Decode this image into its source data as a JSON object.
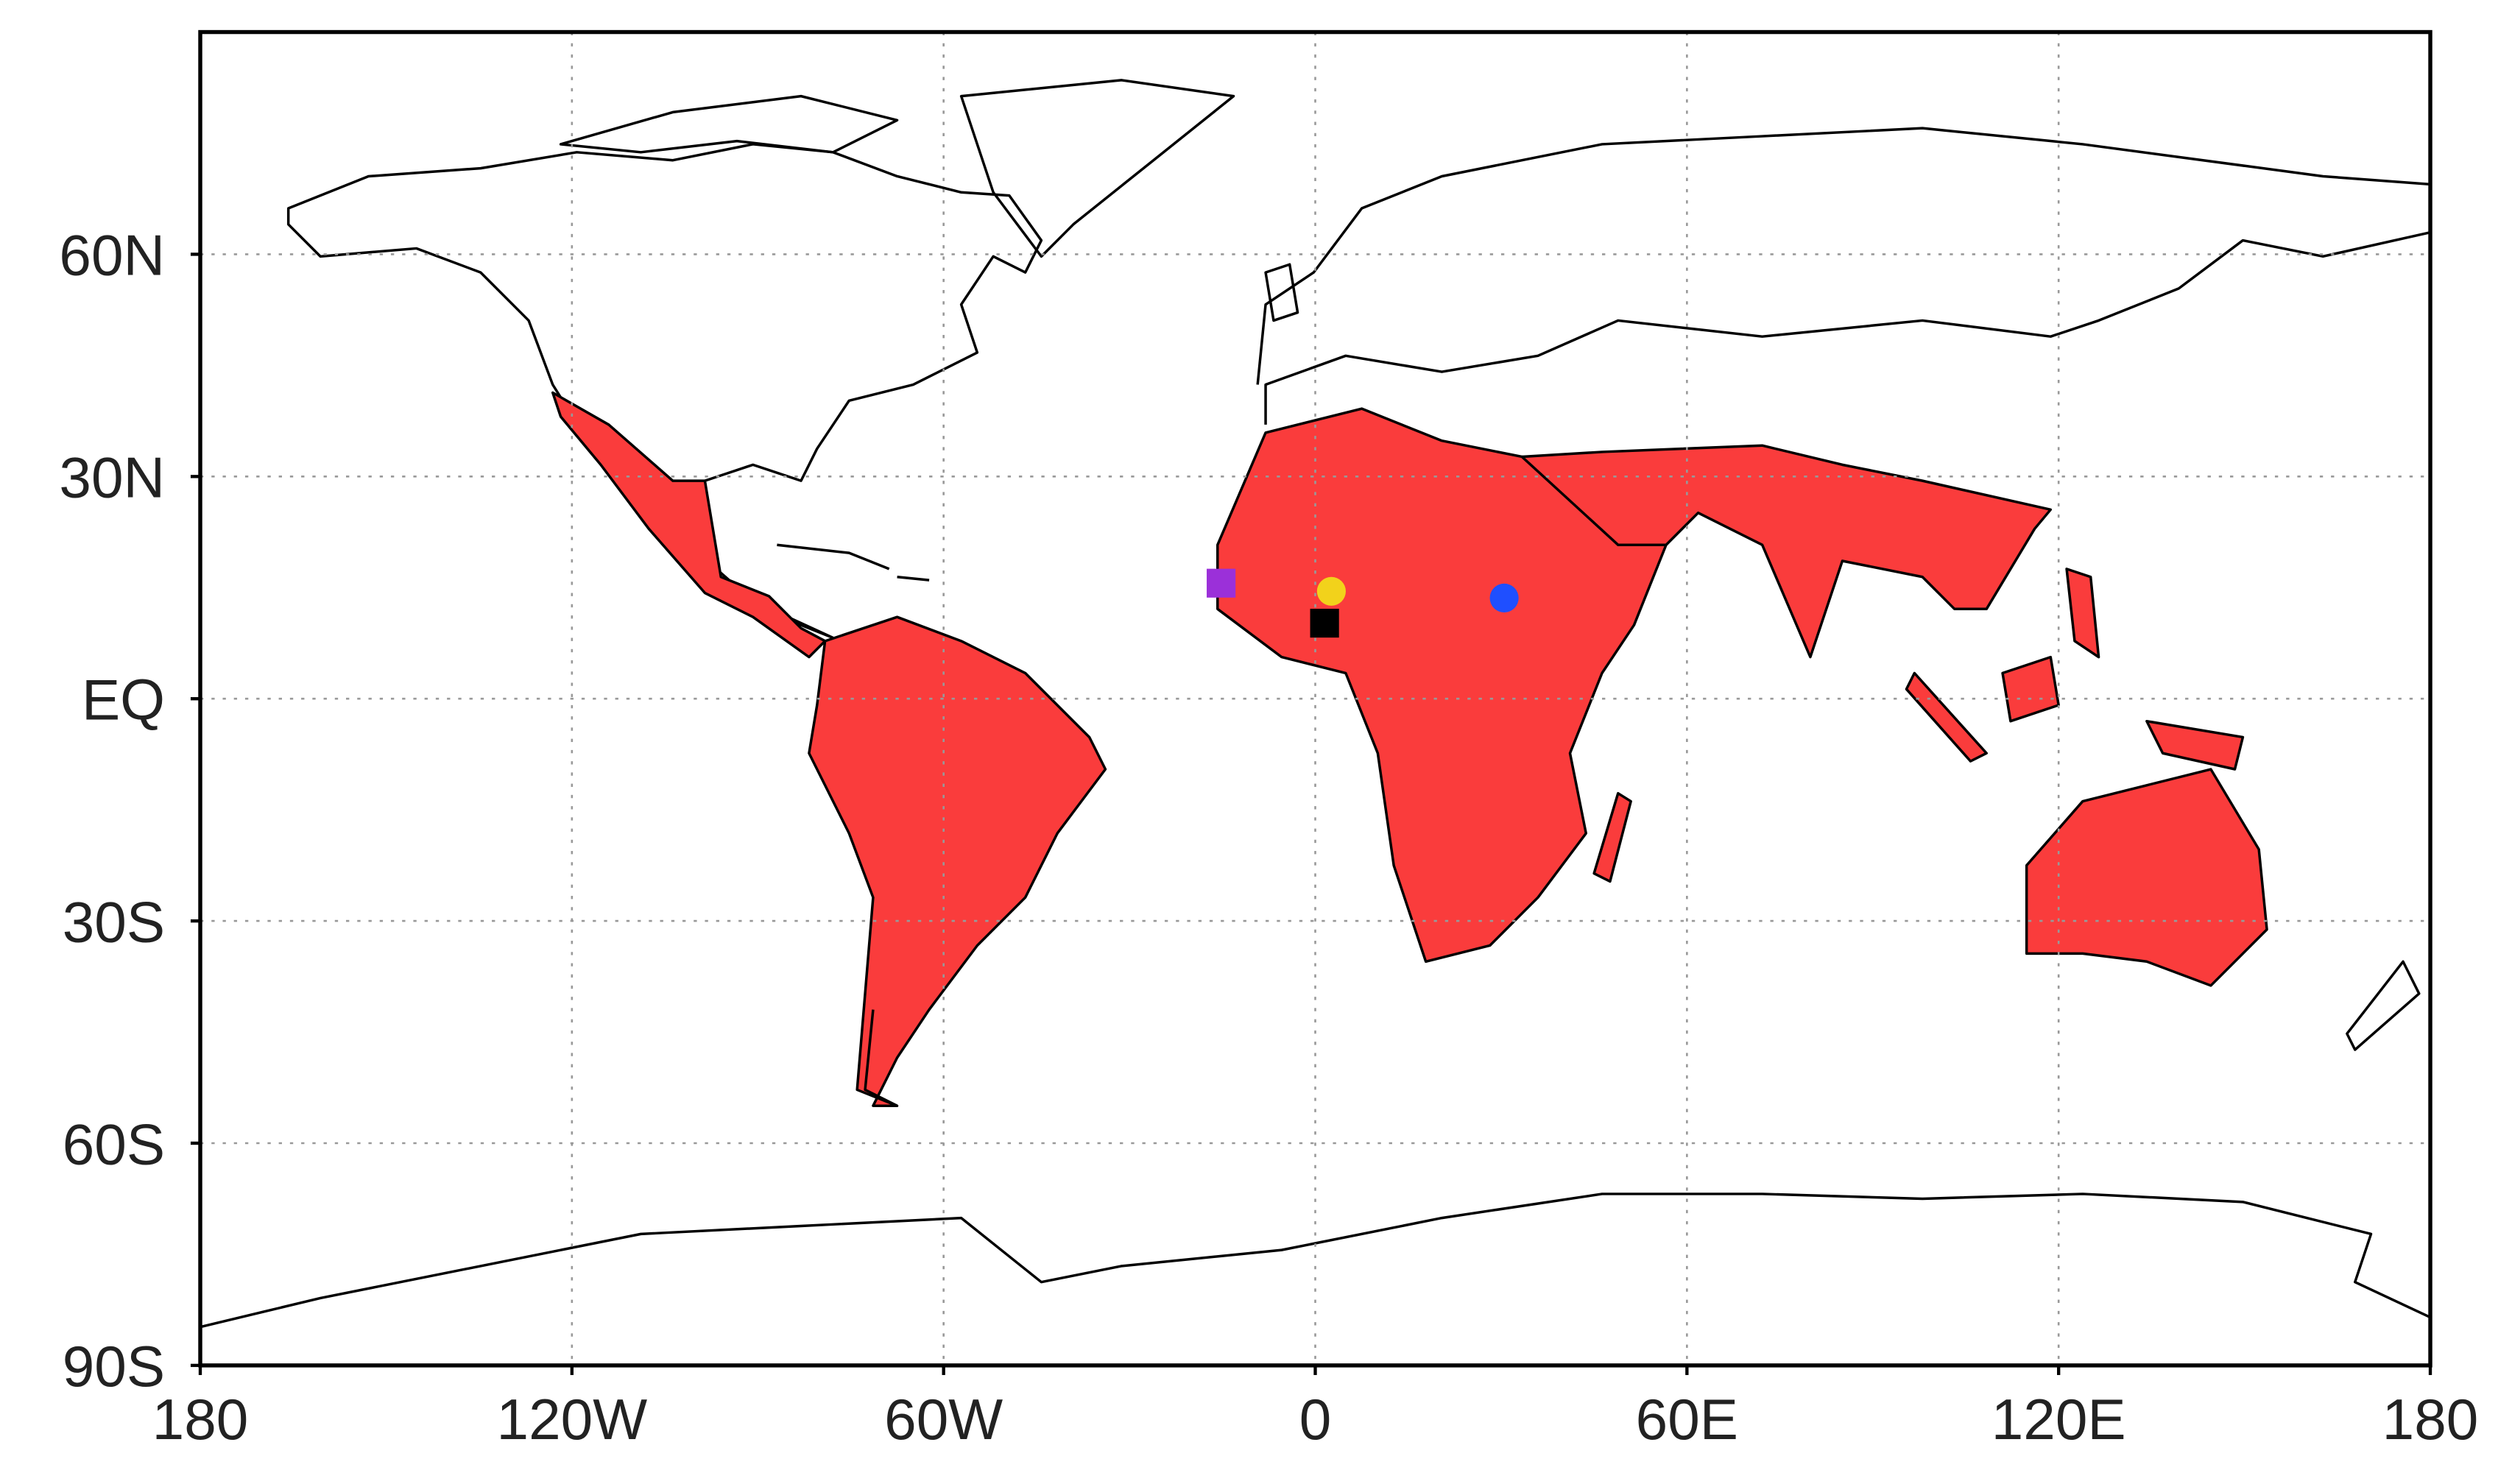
{
  "chart_data": {
    "type": "map",
    "xlim": [
      -180,
      180
    ],
    "ylim": [
      -90,
      90
    ],
    "xticks": [
      {
        "value": -180,
        "label": "180"
      },
      {
        "value": -120,
        "label": "120W"
      },
      {
        "value": -60,
        "label": "60W"
      },
      0,
      {
        "value": 60,
        "label": "60E"
      },
      {
        "value": 120,
        "label": "120E"
      },
      180
    ],
    "yticks": [
      {
        "value": -90,
        "label": "90S"
      },
      {
        "value": -60,
        "label": "60S"
      },
      {
        "value": -30,
        "label": "30S"
      },
      {
        "value": 0,
        "label": "EQ"
      },
      {
        "value": 30,
        "label": "30N"
      },
      {
        "value": 60,
        "label": "60N"
      }
    ],
    "grid": true,
    "markers": [
      {
        "lon": -15.2,
        "lat": 15.6,
        "color": "#9b30d9",
        "shape": "square"
      },
      {
        "lon": 2.6,
        "lat": 14.5,
        "color": "#f2d21b",
        "shape": "circle"
      },
      {
        "lon": 1.5,
        "lat": 10.2,
        "color": "#000000",
        "shape": "square"
      },
      {
        "lon": 30.5,
        "lat": 13.6,
        "color": "#1f4fff",
        "shape": "circle"
      }
    ]
  }
}
